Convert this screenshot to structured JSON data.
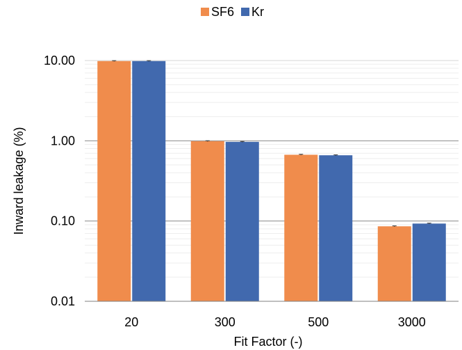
{
  "chart_data": {
    "type": "bar",
    "y_scale": "log",
    "categories": [
      "20",
      "300",
      "500",
      "3000"
    ],
    "series": [
      {
        "name": "SF6",
        "color": "#F08C4C",
        "values": [
          9.85,
          0.99,
          0.67,
          0.086
        ]
      },
      {
        "name": "Kr",
        "color": "#4169AE",
        "values": [
          9.85,
          0.97,
          0.66,
          0.093
        ]
      }
    ],
    "xlabel": "Fit Factor (-)",
    "ylabel": "Inward leakage (%)",
    "ylim": [
      0.01,
      10
    ],
    "yticks": [
      0.01,
      0.1,
      1,
      10
    ],
    "ytick_labels": [
      "0.01",
      "0.10",
      "1.00",
      "10.00"
    ],
    "grid": true,
    "legend": "top-center"
  }
}
